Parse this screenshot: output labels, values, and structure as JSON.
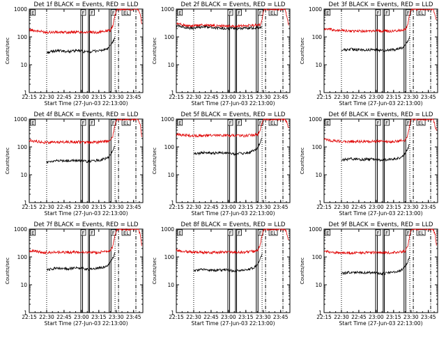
{
  "colors": {
    "events": "#000000",
    "lld": "#e00000",
    "axes": "#000000",
    "background": "#ffffff"
  },
  "chart_data": [
    {
      "type": "line",
      "title": "Det 1f BLACK = Events, RED = LLD",
      "xlabel": "Start Time (27-Jun-03 22:13:00)",
      "ylabel": "Counts/sec",
      "yscale": "log",
      "ylim": [
        1,
        1000
      ],
      "y_ticks": [
        "1",
        "10",
        "100",
        "1000"
      ],
      "xlim_minutes": [
        2,
        100
      ],
      "x_tick_minutes": [
        2,
        17,
        32,
        47,
        62,
        77,
        92
      ],
      "x_tick_labels": [
        "22:15",
        "22:30",
        "22:45",
        "23:00",
        "23:15",
        "23:30",
        "23:45"
      ],
      "events_series": {
        "name": "Events",
        "x": [
          17,
          25,
          35,
          45,
          52,
          58,
          65,
          70,
          73,
          76
        ],
        "y": [
          27,
          32,
          30,
          32,
          28,
          31,
          33,
          38,
          55,
          95
        ]
      },
      "lld_series": {
        "name": "LLD",
        "x": [
          2,
          15,
          30,
          45,
          60,
          72,
          74,
          76,
          77,
          78,
          96,
          98,
          99
        ],
        "y": [
          180,
          150,
          145,
          150,
          145,
          170,
          250,
          600,
          900,
          1000,
          1000,
          600,
          300
        ]
      },
      "solid_markers": [
        46.5,
        48,
        53,
        54,
        71,
        72.5
      ],
      "dotted_markers": [
        17,
        76
      ],
      "dashdot_markers": [
        79,
        94
      ],
      "mode_boxes": [
        {
          "x": 3,
          "label": "E"
        },
        {
          "x": 46.5,
          "label": "F"
        },
        {
          "x": 54,
          "label": "F"
        },
        {
          "x": 72.5,
          "label": "F"
        },
        {
          "x": 82,
          "label": "EL"
        }
      ]
    },
    {
      "type": "line",
      "title": "Det 2f BLACK = Events, RED = LLD",
      "xlabel": "Start Time (27-Jun-03 22:13:00)",
      "ylabel": "Counts/sec",
      "yscale": "log",
      "ylim": [
        1,
        1000
      ],
      "y_ticks": [
        "1",
        "10",
        "100",
        "1000"
      ],
      "xlim_minutes": [
        2,
        100
      ],
      "x_tick_minutes": [
        2,
        17,
        32,
        47,
        62,
        77,
        92
      ],
      "x_tick_labels": [
        "22:15",
        "22:30",
        "22:45",
        "23:00",
        "23:15",
        "23:30",
        "23:45"
      ],
      "events_series": {
        "name": "Events",
        "x": [
          2,
          15,
          25,
          35,
          45,
          55,
          65,
          75,
          76
        ],
        "y": [
          260,
          200,
          230,
          210,
          200,
          200,
          210,
          220,
          250
        ]
      },
      "lld_series": {
        "name": "LLD",
        "x": [
          2,
          15,
          25,
          35,
          45,
          55,
          65,
          75,
          77,
          78,
          96,
          99
        ],
        "y": [
          300,
          240,
          270,
          250,
          245,
          245,
          255,
          270,
          700,
          1000,
          1000,
          250
        ]
      },
      "solid_markers": [
        46.5,
        48,
        53,
        54,
        71,
        72.5
      ],
      "dotted_markers": [
        17,
        76
      ],
      "dashdot_markers": [
        79,
        94
      ],
      "mode_boxes": [
        {
          "x": 3,
          "label": "E"
        },
        {
          "x": 46.5,
          "label": "F"
        },
        {
          "x": 54,
          "label": "F"
        },
        {
          "x": 72.5,
          "label": "F"
        },
        {
          "x": 82,
          "label": "EL"
        }
      ]
    },
    {
      "type": "line",
      "title": "Det 3f BLACK = Events, RED = LLD",
      "xlabel": "Start Time (27-Jun-03 22:13:00)",
      "ylabel": "Counts/sec",
      "yscale": "log",
      "ylim": [
        1,
        1000
      ],
      "y_ticks": [
        "1",
        "10",
        "100",
        "1000"
      ],
      "xlim_minutes": [
        2,
        100
      ],
      "x_tick_minutes": [
        2,
        17,
        32,
        47,
        62,
        77,
        92
      ],
      "x_tick_labels": [
        "22:15",
        "22:30",
        "22:45",
        "23:00",
        "23:15",
        "23:30",
        "23:45"
      ],
      "events_series": {
        "name": "Events",
        "x": [
          17,
          25,
          35,
          45,
          52,
          58,
          65,
          70,
          73,
          76
        ],
        "y": [
          33,
          36,
          34,
          35,
          32,
          34,
          36,
          42,
          60,
          100
        ]
      },
      "lld_series": {
        "name": "LLD",
        "x": [
          2,
          15,
          30,
          45,
          60,
          72,
          74,
          76,
          77,
          78,
          96,
          99
        ],
        "y": [
          190,
          170,
          160,
          165,
          160,
          180,
          260,
          650,
          950,
          1000,
          1000,
          400
        ]
      },
      "solid_markers": [
        46.5,
        48,
        53,
        54,
        71,
        72.5
      ],
      "dotted_markers": [
        17,
        76
      ],
      "dashdot_markers": [
        79,
        94
      ],
      "mode_boxes": [
        {
          "x": 3,
          "label": "E"
        },
        {
          "x": 46.5,
          "label": "F"
        },
        {
          "x": 54,
          "label": "F"
        },
        {
          "x": 72.5,
          "label": "F"
        },
        {
          "x": 82,
          "label": "EL"
        }
      ]
    },
    {
      "type": "line",
      "title": "Det 4f BLACK = Events, RED = LLD",
      "xlabel": "Start Time (27-Jun-03 22:13:00)",
      "ylabel": "Counts/sec",
      "yscale": "log",
      "ylim": [
        1,
        1000
      ],
      "y_ticks": [
        "1",
        "10",
        "100",
        "1000"
      ],
      "xlim_minutes": [
        2,
        100
      ],
      "x_tick_minutes": [
        2,
        17,
        32,
        47,
        62,
        77,
        92
      ],
      "x_tick_labels": [
        "22:15",
        "22:30",
        "22:45",
        "23:00",
        "23:15",
        "23:30",
        "23:45"
      ],
      "events_series": {
        "name": "Events",
        "x": [
          17,
          25,
          35,
          45,
          52,
          58,
          65,
          70,
          73,
          76
        ],
        "y": [
          28,
          32,
          32,
          33,
          30,
          32,
          35,
          40,
          60,
          110
        ]
      },
      "lld_series": {
        "name": "LLD",
        "x": [
          2,
          15,
          30,
          45,
          60,
          72,
          74,
          76,
          77,
          78,
          96,
          98,
          99
        ],
        "y": [
          170,
          145,
          150,
          150,
          145,
          165,
          240,
          620,
          900,
          1000,
          1000,
          600,
          250
        ]
      },
      "solid_markers": [
        46.5,
        48,
        53,
        54,
        71,
        72.5
      ],
      "dotted_markers": [
        17,
        76
      ],
      "dashdot_markers": [
        79,
        94
      ],
      "mode_boxes": [
        {
          "x": 3,
          "label": "E"
        },
        {
          "x": 46.5,
          "label": "F"
        },
        {
          "x": 54,
          "label": "F"
        },
        {
          "x": 72.5,
          "label": "F"
        },
        {
          "x": 82,
          "label": "EL"
        }
      ]
    },
    {
      "type": "line",
      "title": "Det 5f BLACK = Events, RED = LLD",
      "xlabel": "Start Time (27-Jun-03 22:13:00)",
      "ylabel": "Counts/sec",
      "yscale": "log",
      "ylim": [
        1,
        1000
      ],
      "y_ticks": [
        "1",
        "10",
        "100",
        "1000"
      ],
      "xlim_minutes": [
        2,
        100
      ],
      "x_tick_minutes": [
        2,
        17,
        32,
        47,
        62,
        77,
        92
      ],
      "x_tick_labels": [
        "22:15",
        "22:30",
        "22:45",
        "23:00",
        "23:15",
        "23:30",
        "23:45"
      ],
      "events_series": {
        "name": "Events",
        "x": [
          17,
          25,
          35,
          45,
          52,
          58,
          65,
          70,
          73,
          76
        ],
        "y": [
          55,
          62,
          60,
          63,
          55,
          58,
          64,
          75,
          110,
          200
        ]
      },
      "lld_series": {
        "name": "LLD",
        "x": [
          2,
          15,
          30,
          45,
          60,
          72,
          74,
          76,
          77,
          78,
          96,
          99
        ],
        "y": [
          280,
          250,
          255,
          260,
          250,
          280,
          350,
          700,
          950,
          1000,
          1000,
          500
        ]
      },
      "solid_markers": [
        46.5,
        48,
        53,
        54,
        71,
        72.5
      ],
      "dotted_markers": [
        17,
        76
      ],
      "dashdot_markers": [
        79,
        94
      ],
      "mode_boxes": [
        {
          "x": 3,
          "label": "E"
        },
        {
          "x": 46.5,
          "label": "F"
        },
        {
          "x": 54,
          "label": "F"
        },
        {
          "x": 72.5,
          "label": "F"
        },
        {
          "x": 82,
          "label": "EL"
        }
      ]
    },
    {
      "type": "line",
      "title": "Det 6f BLACK = Events, RED = LLD",
      "xlabel": "Start Time (27-Jun-03 22:13:00)",
      "ylabel": "Counts/sec",
      "yscale": "log",
      "ylim": [
        1,
        1000
      ],
      "y_ticks": [
        "1",
        "10",
        "100",
        "1000"
      ],
      "xlim_minutes": [
        2,
        100
      ],
      "x_tick_minutes": [
        2,
        17,
        32,
        47,
        62,
        77,
        92
      ],
      "x_tick_labels": [
        "22:15",
        "22:30",
        "22:45",
        "23:00",
        "23:15",
        "23:30",
        "23:45"
      ],
      "events_series": {
        "name": "Events",
        "x": [
          17,
          25,
          35,
          45,
          52,
          58,
          65,
          70,
          73,
          76
        ],
        "y": [
          33,
          38,
          35,
          37,
          33,
          35,
          38,
          45,
          70,
          130
        ]
      },
      "lld_series": {
        "name": "LLD",
        "x": [
          2,
          15,
          30,
          45,
          60,
          72,
          74,
          76,
          77,
          78,
          96,
          99
        ],
        "y": [
          180,
          160,
          155,
          160,
          155,
          175,
          260,
          650,
          950,
          1000,
          1000,
          400
        ]
      },
      "solid_markers": [
        46.5,
        48,
        53,
        54,
        71,
        72.5
      ],
      "dotted_markers": [
        17,
        76
      ],
      "dashdot_markers": [
        79,
        94
      ],
      "mode_boxes": [
        {
          "x": 3,
          "label": "E"
        },
        {
          "x": 46.5,
          "label": "F"
        },
        {
          "x": 54,
          "label": "F"
        },
        {
          "x": 72.5,
          "label": "F"
        },
        {
          "x": 82,
          "label": "EL"
        }
      ]
    },
    {
      "type": "line",
      "title": "Det 7f BLACK = Events, RED = LLD",
      "xlabel": "Start Time (27-Jun-03 22:13:00)",
      "ylabel": "Counts/sec",
      "yscale": "log",
      "ylim": [
        1,
        1000
      ],
      "y_ticks": [
        "1",
        "10",
        "100",
        "1000"
      ],
      "xlim_minutes": [
        2,
        100
      ],
      "x_tick_minutes": [
        2,
        17,
        32,
        47,
        62,
        77,
        92
      ],
      "x_tick_labels": [
        "22:15",
        "22:30",
        "22:45",
        "23:00",
        "23:15",
        "23:30",
        "23:45"
      ],
      "events_series": {
        "name": "Events",
        "x": [
          17,
          25,
          35,
          45,
          52,
          58,
          65,
          70,
          73,
          76
        ],
        "y": [
          33,
          40,
          38,
          40,
          36,
          38,
          42,
          50,
          75,
          140
        ]
      },
      "lld_series": {
        "name": "LLD",
        "x": [
          2,
          15,
          30,
          45,
          60,
          72,
          74,
          76,
          77,
          78,
          96,
          98,
          99
        ],
        "y": [
          170,
          145,
          145,
          150,
          145,
          165,
          240,
          620,
          900,
          1000,
          1000,
          600,
          250
        ]
      },
      "solid_markers": [
        46.5,
        48,
        53,
        54,
        71,
        72.5
      ],
      "dotted_markers": [
        17,
        76
      ],
      "dashdot_markers": [
        79,
        94
      ],
      "mode_boxes": [
        {
          "x": 3,
          "label": "E"
        },
        {
          "x": 46.5,
          "label": "F"
        },
        {
          "x": 54,
          "label": "F"
        },
        {
          "x": 72.5,
          "label": "F"
        },
        {
          "x": 82,
          "label": "EL"
        }
      ]
    },
    {
      "type": "line",
      "title": "Det 8f BLACK = Events, RED = LLD",
      "xlabel": "Start Time (27-Jun-03 22:13:00)",
      "ylabel": "Counts/sec",
      "yscale": "log",
      "ylim": [
        1,
        1000
      ],
      "y_ticks": [
        "1",
        "10",
        "100",
        "1000"
      ],
      "xlim_minutes": [
        2,
        100
      ],
      "x_tick_minutes": [
        2,
        17,
        32,
        47,
        62,
        77,
        92
      ],
      "x_tick_labels": [
        "22:15",
        "22:30",
        "22:45",
        "23:00",
        "23:15",
        "23:30",
        "23:45"
      ],
      "events_series": {
        "name": "Events",
        "x": [
          17,
          25,
          35,
          45,
          52,
          58,
          65,
          70,
          73,
          76
        ],
        "y": [
          32,
          35,
          33,
          35,
          31,
          33,
          36,
          43,
          65,
          120
        ]
      },
      "lld_series": {
        "name": "LLD",
        "x": [
          2,
          15,
          30,
          45,
          60,
          72,
          74,
          76,
          77,
          78,
          96,
          99
        ],
        "y": [
          170,
          150,
          145,
          150,
          145,
          165,
          240,
          620,
          900,
          1000,
          1000,
          400
        ]
      },
      "solid_markers": [
        46.5,
        48,
        53,
        54,
        71,
        72.5
      ],
      "dotted_markers": [
        17,
        76
      ],
      "dashdot_markers": [
        79,
        94
      ],
      "mode_boxes": [
        {
          "x": 3,
          "label": "E"
        },
        {
          "x": 46.5,
          "label": "F"
        },
        {
          "x": 54,
          "label": "F"
        },
        {
          "x": 72.5,
          "label": "F"
        },
        {
          "x": 82,
          "label": "EL"
        }
      ]
    },
    {
      "type": "line",
      "title": "Det 9f BLACK = Events, RED = LLD",
      "xlabel": "Start Time (27-Jun-03 22:13:00)",
      "ylabel": "Counts/sec",
      "yscale": "log",
      "ylim": [
        1,
        1000
      ],
      "y_ticks": [
        "1",
        "10",
        "100",
        "1000"
      ],
      "xlim_minutes": [
        2,
        100
      ],
      "x_tick_minutes": [
        2,
        17,
        32,
        47,
        62,
        77,
        92
      ],
      "x_tick_labels": [
        "22:15",
        "22:30",
        "22:45",
        "23:00",
        "23:15",
        "23:30",
        "23:45"
      ],
      "events_series": {
        "name": "Events",
        "x": [
          17,
          25,
          35,
          45,
          52,
          58,
          65,
          70,
          73,
          76
        ],
        "y": [
          25,
          28,
          27,
          28,
          25,
          27,
          30,
          36,
          55,
          100
        ]
      },
      "lld_series": {
        "name": "LLD",
        "x": [
          2,
          15,
          30,
          45,
          60,
          72,
          74,
          76,
          77,
          78,
          96,
          98,
          99
        ],
        "y": [
          160,
          140,
          140,
          145,
          140,
          160,
          230,
          600,
          900,
          1000,
          1000,
          600,
          250
        ]
      },
      "solid_markers": [
        46.5,
        48,
        53,
        54,
        71,
        72.5
      ],
      "dotted_markers": [
        17,
        76
      ],
      "dashdot_markers": [
        79,
        94
      ],
      "mode_boxes": [
        {
          "x": 3,
          "label": "E"
        },
        {
          "x": 46.5,
          "label": "F"
        },
        {
          "x": 54,
          "label": "F"
        },
        {
          "x": 72.5,
          "label": "F"
        },
        {
          "x": 82,
          "label": "EL"
        }
      ]
    }
  ]
}
